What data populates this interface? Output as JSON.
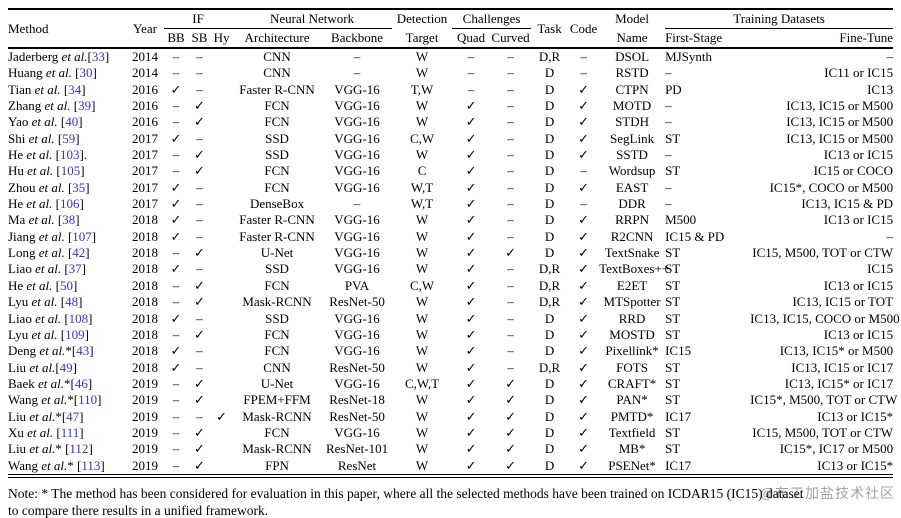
{
  "colors": {
    "citation_blue": "#3333cc",
    "text": "#000000",
    "watermark_gray": "#9b9b9b"
  },
  "watermark": "@布工加盐技术社区",
  "note": {
    "line1": "Note: * The method has been considered for evaluation in this paper, where all the selected methods have been trained on ICDAR15 (IC15) dataset",
    "line2": "to compare there results in a unified framework."
  },
  "table": {
    "header": {
      "method": "Method",
      "year": "Year",
      "if_group": "IF",
      "bb": "BB",
      "sb": "SB",
      "hy": "Hy",
      "nn_group": "Neural Network",
      "architecture": "Architecture",
      "backbone": "Backbone",
      "detection_line1": "Detection",
      "detection_line2": "Target",
      "challenges_group": "Challenges",
      "quad": "Quad",
      "curved": "Curved",
      "task": "Task",
      "code": "Code",
      "model_line1": "Model",
      "model_line2": "Name",
      "datasets_group": "Training Datasets",
      "first_stage": "First-Stage",
      "fine_tune": "Fine-Tune"
    },
    "glyphs": {
      "check": "✓",
      "dash": "–"
    },
    "rows": [
      {
        "method": {
          "name": "Jaderberg",
          "star": "",
          "gap": "",
          "ref": "33",
          "tail": ""
        },
        "year": "2014",
        "bb": "–",
        "sb": "–",
        "hy": "",
        "arch": "CNN",
        "backbone": "–",
        "target": "W",
        "quad": "–",
        "curved": "–",
        "task": "D,R",
        "code": "–",
        "model": "DSOL",
        "first": "MJSynth",
        "fine": "–"
      },
      {
        "method": {
          "name": "Huang",
          "star": "",
          "gap": " ",
          "ref": "30",
          "tail": ""
        },
        "year": "2014",
        "bb": "–",
        "sb": "–",
        "hy": "",
        "arch": "CNN",
        "backbone": "–",
        "target": "W",
        "quad": "–",
        "curved": "–",
        "task": "D",
        "code": "–",
        "model": "RSTD",
        "first": "–",
        "fine": "IC11 or IC15"
      },
      {
        "method": {
          "name": "Tian",
          "star": "",
          "gap": " ",
          "ref": "34",
          "tail": ""
        },
        "year": "2016",
        "bb": "✓",
        "sb": "–",
        "hy": "",
        "arch": "Faster R-CNN",
        "backbone": "VGG-16",
        "target": "T,W",
        "quad": "–",
        "curved": "–",
        "task": "D",
        "code": "✓",
        "model": "CTPN",
        "first": "PD",
        "fine": "IC13"
      },
      {
        "method": {
          "name": "Zhang",
          "star": "",
          "gap": " ",
          "ref": "39",
          "tail": ""
        },
        "year": "2016",
        "bb": "–",
        "sb": "✓",
        "hy": "",
        "arch": "FCN",
        "backbone": "VGG-16",
        "target": "W",
        "quad": "✓",
        "curved": "–",
        "task": "D",
        "code": "✓",
        "model": "MOTD",
        "first": "–",
        "fine": "IC13, IC15 or M500"
      },
      {
        "method": {
          "name": "Yao",
          "star": "",
          "gap": " ",
          "ref": "40",
          "tail": ""
        },
        "year": "2016",
        "bb": "–",
        "sb": "✓",
        "hy": "",
        "arch": "FCN",
        "backbone": "VGG-16",
        "target": "W",
        "quad": "✓",
        "curved": "–",
        "task": "D",
        "code": "✓",
        "model": "STDH",
        "first": "–",
        "fine": "IC13, IC15 or M500"
      },
      {
        "method": {
          "name": "Shi",
          "star": "",
          "gap": " ",
          "ref": "59",
          "tail": ""
        },
        "year": "2017",
        "bb": "✓",
        "sb": "–",
        "hy": "",
        "arch": "SSD",
        "backbone": "VGG-16",
        "target": "C,W",
        "quad": "✓",
        "curved": "–",
        "task": "D",
        "code": "✓",
        "model": "SegLink",
        "first": "ST",
        "fine": "IC13, IC15 or M500"
      },
      {
        "method": {
          "name": "He",
          "star": "",
          "gap": " ",
          "ref": "103",
          "tail": "."
        },
        "year": "2017",
        "bb": "–",
        "sb": "✓",
        "hy": "",
        "arch": "SSD",
        "backbone": "VGG-16",
        "target": "W",
        "quad": "✓",
        "curved": "–",
        "task": "D",
        "code": "✓",
        "model": "SSTD",
        "first": "–",
        "fine": "IC13 or IC15"
      },
      {
        "method": {
          "name": "Hu",
          "star": "",
          "gap": " ",
          "ref": "105",
          "tail": ""
        },
        "year": "2017",
        "bb": "–",
        "sb": "✓",
        "hy": "",
        "arch": "FCN",
        "backbone": "VGG-16",
        "target": "C",
        "quad": "✓",
        "curved": "–",
        "task": "D",
        "code": "–",
        "model": "Wordsup",
        "first": "ST",
        "fine": "IC15 or COCO"
      },
      {
        "method": {
          "name": "Zhou",
          "star": "",
          "gap": " ",
          "ref": "35",
          "tail": ""
        },
        "year": "2017",
        "bb": "✓",
        "sb": "–",
        "hy": "",
        "arch": "FCN",
        "backbone": "VGG-16",
        "target": "W,T",
        "quad": "✓",
        "curved": "–",
        "task": "D",
        "code": "✓",
        "model": "EAST",
        "first": "–",
        "fine": "IC15*, COCO or M500"
      },
      {
        "method": {
          "name": "He",
          "star": "",
          "gap": " ",
          "ref": "106",
          "tail": ""
        },
        "year": "2017",
        "bb": "✓",
        "sb": "–",
        "hy": "",
        "arch": "DenseBox",
        "backbone": "–",
        "target": "W,T",
        "quad": "✓",
        "curved": "–",
        "task": "D",
        "code": "–",
        "model": "DDR",
        "first": "–",
        "fine": "IC13, IC15 & PD"
      },
      {
        "method": {
          "name": "Ma",
          "star": "",
          "gap": " ",
          "ref": "38",
          "tail": ""
        },
        "year": "2018",
        "bb": "✓",
        "sb": "–",
        "hy": "",
        "arch": "Faster R-CNN",
        "backbone": "VGG-16",
        "target": "W",
        "quad": "✓",
        "curved": "–",
        "task": "D",
        "code": "✓",
        "model": "RRPN",
        "first": "M500",
        "fine": "IC13 or IC15"
      },
      {
        "method": {
          "name": "Jiang",
          "star": "",
          "gap": " ",
          "ref": "107",
          "tail": ""
        },
        "year": "2018",
        "bb": "✓",
        "sb": "–",
        "hy": "",
        "arch": "Faster R-CNN",
        "backbone": "VGG-16",
        "target": "W",
        "quad": "✓",
        "curved": "–",
        "task": "D",
        "code": "✓",
        "model": "R2CNN",
        "first": "IC15 & PD",
        "fine": "–"
      },
      {
        "method": {
          "name": "Long",
          "star": "",
          "gap": " ",
          "ref": "42",
          "tail": ""
        },
        "year": "2018",
        "bb": "–",
        "sb": "✓",
        "hy": "",
        "arch": "U-Net",
        "backbone": "VGG-16",
        "target": "W",
        "quad": "✓",
        "curved": "✓",
        "task": "D",
        "code": "✓",
        "model": "TextSnake",
        "first": "ST",
        "fine": "IC15, M500, TOT or CTW"
      },
      {
        "method": {
          "name": "Liao",
          "star": "",
          "gap": " ",
          "ref": "37",
          "tail": ""
        },
        "year": "2018",
        "bb": "✓",
        "sb": "–",
        "hy": "",
        "arch": "SSD",
        "backbone": "VGG-16",
        "target": "W",
        "quad": "✓",
        "curved": "–",
        "task": "D,R",
        "code": "✓",
        "model": "TextBoxes++",
        "first": "ST",
        "fine": "IC15"
      },
      {
        "method": {
          "name": "He",
          "star": "",
          "gap": " ",
          "ref": "50",
          "tail": ""
        },
        "year": "2018",
        "bb": "–",
        "sb": "✓",
        "hy": "",
        "arch": "FCN",
        "backbone": "PVA",
        "target": "C,W",
        "quad": "✓",
        "curved": "–",
        "task": "D,R",
        "code": "✓",
        "model": "E2ET",
        "first": "ST",
        "fine": "IC13 or IC15"
      },
      {
        "method": {
          "name": "Lyu",
          "star": "",
          "gap": " ",
          "ref": "48",
          "tail": ""
        },
        "year": "2018",
        "bb": "–",
        "sb": "✓",
        "hy": "",
        "arch": "Mask-RCNN",
        "backbone": "ResNet-50",
        "target": "W",
        "quad": "✓",
        "curved": "–",
        "task": "D,R",
        "code": "✓",
        "model": "MTSpotter",
        "first": "ST",
        "fine": "IC13, IC15 or TOT"
      },
      {
        "method": {
          "name": "Liao",
          "star": "",
          "gap": " ",
          "ref": "108",
          "tail": ""
        },
        "year": "2018",
        "bb": "✓",
        "sb": "–",
        "hy": "",
        "arch": "SSD",
        "backbone": "VGG-16",
        "target": "W",
        "quad": "✓",
        "curved": "–",
        "task": "D",
        "code": "✓",
        "model": "RRD",
        "first": "ST",
        "fine": "IC13, IC15, COCO or M500"
      },
      {
        "method": {
          "name": "Lyu",
          "star": "",
          "gap": " ",
          "ref": "109",
          "tail": ""
        },
        "year": "2018",
        "bb": "–",
        "sb": "✓",
        "hy": "",
        "arch": "FCN",
        "backbone": "VGG-16",
        "target": "W",
        "quad": "✓",
        "curved": "–",
        "task": "D",
        "code": "✓",
        "model": "MOSTD",
        "first": "ST",
        "fine": "IC13 or IC15"
      },
      {
        "method": {
          "name": "Deng",
          "star": "*",
          "gap": "",
          "ref": "43",
          "tail": ""
        },
        "year": "2018",
        "bb": "✓",
        "sb": "–",
        "hy": "",
        "arch": "FCN",
        "backbone": "VGG-16",
        "target": "W",
        "quad": "✓",
        "curved": "–",
        "task": "D",
        "code": "✓",
        "model": "Pixellink*",
        "first": "IC15",
        "fine": "IC13, IC15* or M500"
      },
      {
        "method": {
          "name": "Liu",
          "star": "",
          "gap": "",
          "ref": "49",
          "tail": ""
        },
        "year": "2018",
        "bb": "✓",
        "sb": "–",
        "hy": "",
        "arch": "CNN",
        "backbone": "ResNet-50",
        "target": "W",
        "quad": "✓",
        "curved": "–",
        "task": "D,R",
        "code": "✓",
        "model": "FOTS",
        "first": "ST",
        "fine": "IC13, IC15 or IC17"
      },
      {
        "method": {
          "name": "Baek",
          "star": "*",
          "gap": "",
          "ref": "46",
          "tail": ""
        },
        "year": "2019",
        "bb": "–",
        "sb": "✓",
        "hy": "",
        "arch": "U-Net",
        "backbone": "VGG-16",
        "target": "C,W,T",
        "quad": "✓",
        "curved": "✓",
        "task": "D",
        "code": "✓",
        "model": "CRAFT*",
        "first": "ST",
        "fine": "IC13, IC15* or IC17"
      },
      {
        "method": {
          "name": "Wang",
          "star": "*",
          "gap": "",
          "ref": "110",
          "tail": ""
        },
        "year": "2019",
        "bb": "–",
        "sb": "✓",
        "hy": "",
        "arch": "FPEM+FFM",
        "backbone": "ResNet-18",
        "target": "W",
        "quad": "✓",
        "curved": "✓",
        "task": "D",
        "code": "✓",
        "model": "PAN*",
        "first": "ST",
        "fine": "IC15*, M500, TOT or CTW"
      },
      {
        "method": {
          "name": "Liu",
          "star": "*",
          "gap": "",
          "ref": "47",
          "tail": ""
        },
        "year": "2019",
        "bb": "–",
        "sb": "–",
        "hy": "✓",
        "arch": "Mask-RCNN",
        "backbone": "ResNet-50",
        "target": "W",
        "quad": "✓",
        "curved": "✓",
        "task": "D",
        "code": "✓",
        "model": "PMTD*",
        "first": "IC17",
        "fine": "IC13 or IC15*"
      },
      {
        "method": {
          "name": "Xu",
          "star": "",
          "gap": " ",
          "ref": "111",
          "tail": ""
        },
        "year": "2019",
        "bb": "–",
        "sb": "✓",
        "hy": "",
        "arch": "FCN",
        "backbone": "VGG-16",
        "target": "W",
        "quad": "✓",
        "curved": "✓",
        "task": "D",
        "code": "✓",
        "model": "Textfield",
        "first": "ST",
        "fine": "IC15, M500, TOT or CTW"
      },
      {
        "method": {
          "name": "Liu",
          "star": "*",
          "gap": " ",
          "ref": "112",
          "tail": ""
        },
        "year": "2019",
        "bb": "–",
        "sb": "✓",
        "hy": "",
        "arch": "Mask-RCNN",
        "backbone": "ResNet-101",
        "target": "W",
        "quad": "✓",
        "curved": "✓",
        "task": "D",
        "code": "✓",
        "model": "MB*",
        "first": "ST",
        "fine": "IC15*, IC17 or M500"
      },
      {
        "method": {
          "name": "Wang",
          "star": "*",
          "gap": " ",
          "ref": "113",
          "tail": ""
        },
        "year": "2019",
        "bb": "–",
        "sb": "✓",
        "hy": "",
        "arch": "FPN",
        "backbone": "ResNet",
        "target": "W",
        "quad": "✓",
        "curved": "✓",
        "task": "D",
        "code": "✓",
        "model": "PSENet*",
        "first": "IC17",
        "fine": "IC13 or IC15*"
      }
    ]
  }
}
